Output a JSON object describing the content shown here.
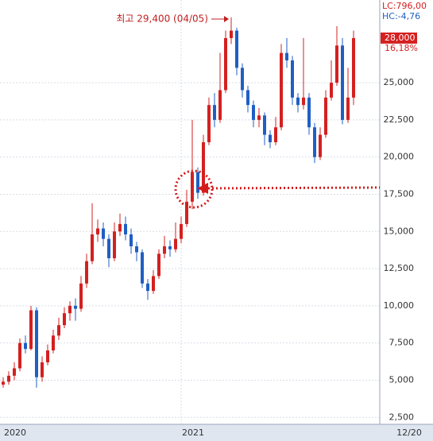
{
  "chart_data": {
    "type": "candlestick",
    "annotation": "최고 29,400 (04/05)",
    "lc_label": "LC:796,00",
    "hc_label": "HC:-4,76",
    "current_price": {
      "value": 28000,
      "label": "28,000"
    },
    "change_label": "16,18%",
    "last_date_label": "12/20",
    "up_color": "#d42020",
    "down_color": "#1f5fc4",
    "grid": true,
    "ylim": [
      2140,
      30560
    ],
    "yticks": [
      {
        "value": 2500,
        "label": "2,500"
      },
      {
        "value": 5000,
        "label": "5,000"
      },
      {
        "value": 7500,
        "label": "7,500"
      },
      {
        "value": 10000,
        "label": "10,000"
      },
      {
        "value": 12500,
        "label": "12,500"
      },
      {
        "value": 15000,
        "label": "15,000"
      },
      {
        "value": 17500,
        "label": "17,500"
      },
      {
        "value": 20000,
        "label": "20,000"
      },
      {
        "value": 22500,
        "label": "22,500"
      },
      {
        "value": 25000,
        "label": "25,000"
      }
    ],
    "categories": [
      "2020",
      null,
      null,
      null,
      null,
      null,
      null,
      null,
      null,
      null,
      null,
      null,
      null,
      null,
      null,
      null,
      null,
      null,
      null,
      null,
      null,
      null,
      null,
      null,
      null,
      null,
      null,
      null,
      null,
      null,
      null,
      null,
      "2021",
      null,
      null,
      null,
      null,
      null,
      null,
      null,
      null,
      null,
      null,
      null,
      null,
      null,
      null,
      null,
      null,
      null,
      null,
      null,
      null,
      null,
      null,
      null,
      null,
      null,
      null,
      null,
      null,
      null,
      null,
      null
    ],
    "candles": {
      "open": [
        4700,
        4900,
        5300,
        5800,
        7500,
        7100,
        9700,
        5200,
        6200,
        7000,
        8000,
        8700,
        9500,
        10000,
        9800,
        11500,
        13000,
        14800,
        15200,
        14500,
        13200,
        15000,
        15500,
        14800,
        14000,
        13600,
        11500,
        11000,
        12000,
        13500,
        14000,
        13800,
        14500,
        15500,
        17000,
        19000,
        17600,
        21000,
        23500,
        22500,
        24500,
        28000,
        28500,
        26000,
        24500,
        23500,
        22500,
        22800,
        21500,
        21000,
        22000,
        27000,
        26500,
        24000,
        23500,
        24000,
        22000,
        20000,
        21500,
        24000,
        25000,
        27500,
        22500,
        24000
      ],
      "high": [
        5200,
        5600,
        6200,
        7800,
        8000,
        10000,
        9900,
        6600,
        7400,
        8400,
        9200,
        9900,
        10300,
        10500,
        12000,
        13500,
        16900,
        15800,
        15600,
        14800,
        15600,
        16200,
        16000,
        15200,
        14300,
        13800,
        11800,
        12400,
        13800,
        14700,
        14400,
        15600,
        16000,
        17800,
        22500,
        19300,
        21500,
        24000,
        24300,
        27000,
        28500,
        29400,
        28700,
        26300,
        24800,
        23800,
        23300,
        23000,
        21800,
        22700,
        27600,
        28000,
        26800,
        24300,
        28000,
        24300,
        22300,
        22000,
        24500,
        26500,
        28800,
        28000,
        26000,
        28500
      ],
      "low": [
        4500,
        4700,
        5000,
        5600,
        6800,
        7000,
        4500,
        4900,
        6000,
        6800,
        7700,
        8500,
        9000,
        9000,
        9600,
        11200,
        12800,
        14300,
        14000,
        12600,
        13000,
        14700,
        14400,
        13500,
        13000,
        11200,
        10400,
        10800,
        11800,
        13200,
        13300,
        13600,
        14200,
        15300,
        16500,
        17200,
        17400,
        20800,
        22000,
        22300,
        24300,
        27600,
        25500,
        24000,
        23000,
        22000,
        22000,
        20800,
        20600,
        20800,
        21800,
        26000,
        23500,
        23000,
        23200,
        21500,
        19600,
        19800,
        21300,
        23800,
        24800,
        22200,
        22300,
        23500
      ],
      "close": [
        4900,
        5300,
        5800,
        7500,
        7100,
        9700,
        5200,
        6200,
        7000,
        8000,
        8700,
        9500,
        10000,
        9800,
        11500,
        13000,
        14800,
        15200,
        14500,
        13200,
        15000,
        15500,
        14800,
        14000,
        13600,
        11500,
        11000,
        12000,
        13500,
        14000,
        13800,
        14500,
        15500,
        17000,
        19000,
        17600,
        21000,
        23500,
        22500,
        24500,
        28000,
        28500,
        26000,
        24500,
        23500,
        22500,
        22800,
        21500,
        21000,
        22000,
        27000,
        26500,
        24000,
        23500,
        24000,
        22000,
        20000,
        21500,
        24000,
        25000,
        27500,
        22500,
        24000,
        28000
      ]
    }
  }
}
